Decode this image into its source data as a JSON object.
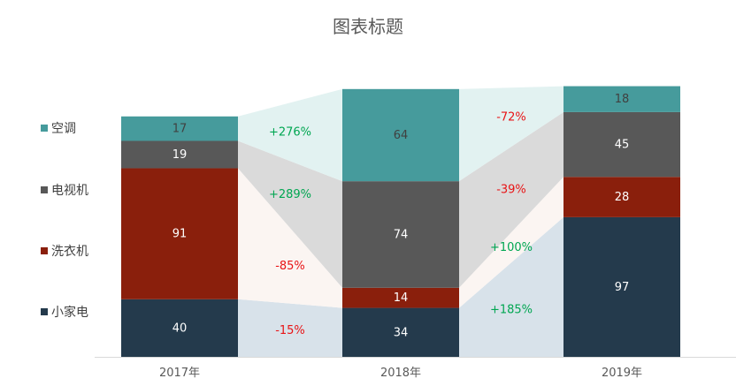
{
  "chart_data": {
    "type": "bar",
    "stacked": true,
    "title": "图表标题",
    "categories": [
      "2017年",
      "2018年",
      "2019年"
    ],
    "series": [
      {
        "name": "小家电",
        "values": [
          40,
          34,
          97
        ],
        "color": "#243A4C",
        "label_color": "#FFFFFF"
      },
      {
        "name": "洗衣机",
        "values": [
          91,
          14,
          28
        ],
        "color": "#8A1F0C",
        "label_color": "#FFFFFF"
      },
      {
        "name": "电视机",
        "values": [
          19,
          74,
          45
        ],
        "color": "#585858",
        "label_color": "#FFFFFF"
      },
      {
        "name": "空调",
        "values": [
          17,
          64,
          18
        ],
        "color": "#469B9C",
        "label_color": "#404040"
      }
    ],
    "flow_colors": [
      "#D8E2EA",
      "#FBF5F2",
      "#DADADA",
      "#E2F2F1"
    ],
    "change_labels": [
      [
        "-15%",
        "-85%",
        "+289%",
        "+276%"
      ],
      [
        "+185%",
        "+100%",
        "-39%",
        "-72%"
      ]
    ],
    "change_colors": {
      "positive": "#00A651",
      "negative": "#E81416"
    },
    "legend": {
      "position": "left",
      "order": [
        "空调",
        "电视机",
        "洗衣机",
        "小家电"
      ]
    },
    "xlabel": "",
    "ylabel": "",
    "grid": false
  }
}
